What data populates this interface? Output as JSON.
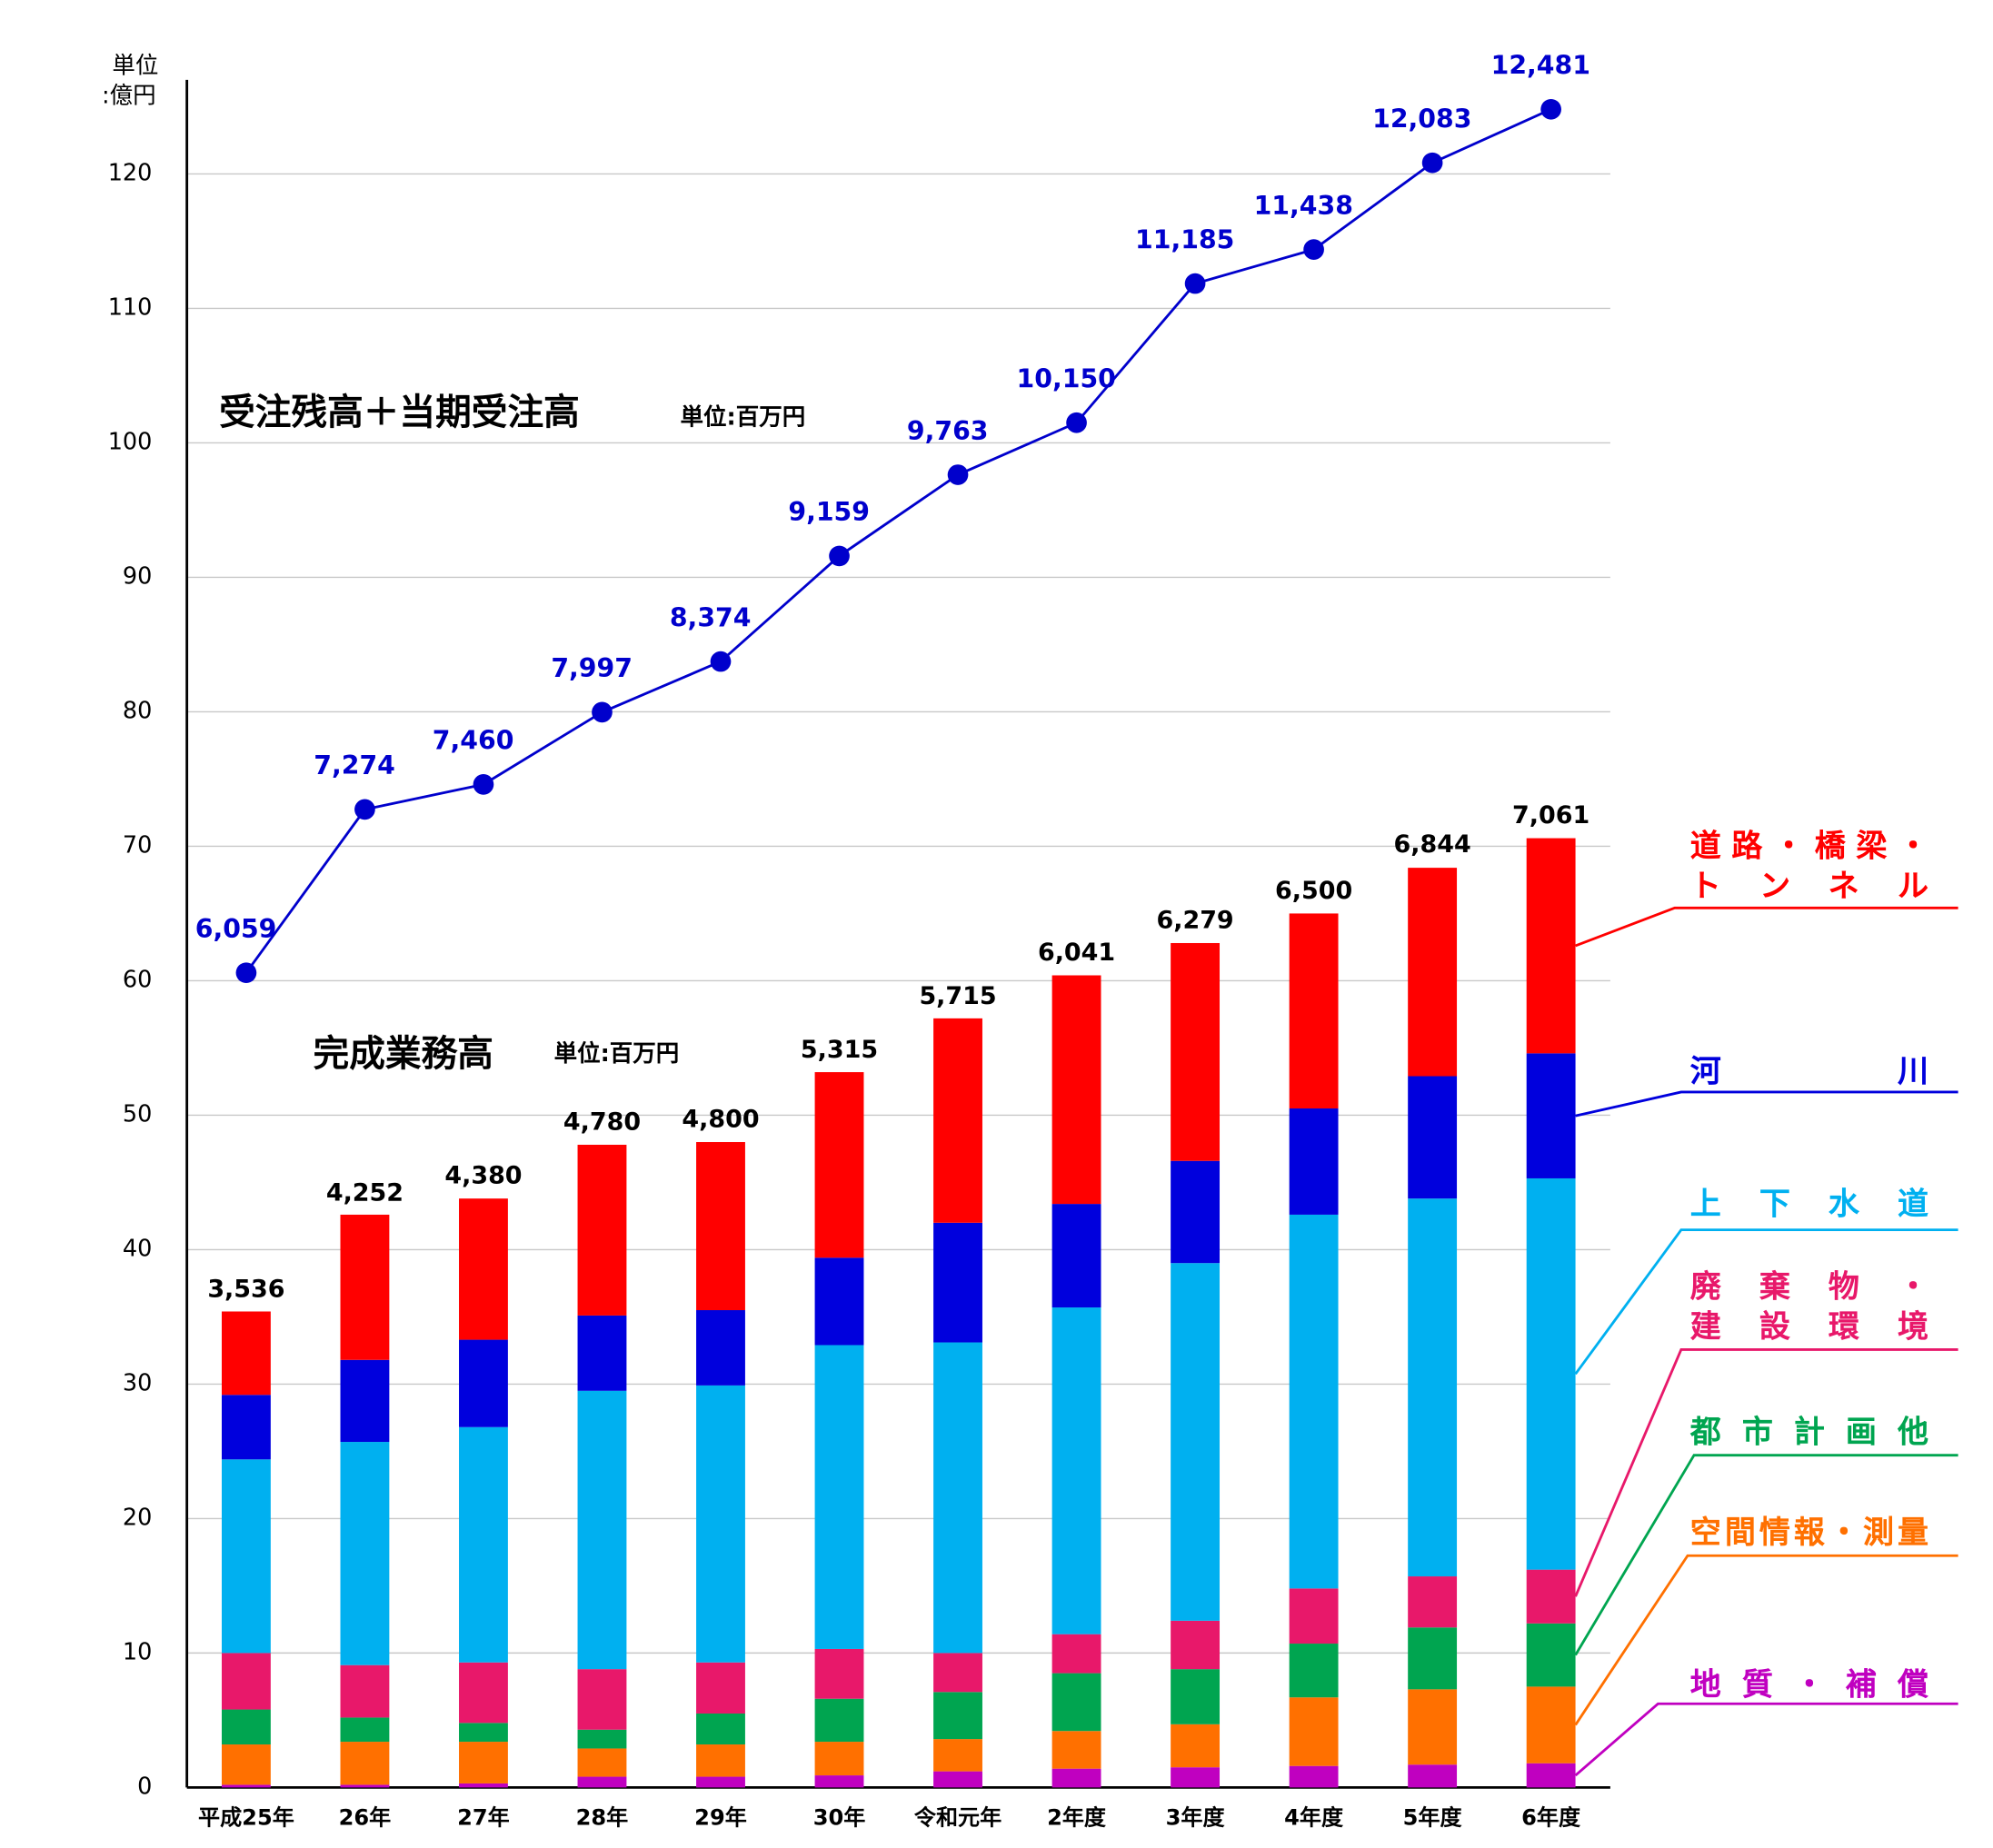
{
  "chart_data": [
    {
      "type": "bar",
      "stacked": true,
      "title": "完成業務高",
      "subtitle": "単位:百万円",
      "y_unit": [
        "単位",
        ":億円"
      ],
      "categories": [
        "平成25年",
        "26年",
        "27年",
        "28年",
        "29年",
        "30年",
        "令和元年",
        "2年度",
        "3年度",
        "4年度",
        "5年度",
        "6年度"
      ],
      "ylim": [
        0,
        127
      ],
      "yticks": [
        0,
        10,
        20,
        30,
        40,
        50,
        60,
        70,
        80,
        90,
        100,
        110,
        120
      ],
      "grid": true,
      "series": [
        {
          "name": "地質・補償",
          "color": "#c000c0",
          "values": [
            0.2,
            0.2,
            0.3,
            0.8,
            0.8,
            0.9,
            1.2,
            1.4,
            1.5,
            1.6,
            1.7,
            1.8
          ]
        },
        {
          "name": "空間情報・測量",
          "color": "#ff7000",
          "values": [
            3.0,
            3.2,
            3.1,
            2.1,
            2.4,
            2.5,
            2.4,
            2.8,
            3.2,
            5.1,
            5.6,
            5.7
          ]
        },
        {
          "name": "都市計画他",
          "color": "#00a550",
          "values": [
            2.6,
            1.8,
            1.4,
            1.4,
            2.3,
            3.2,
            3.5,
            4.3,
            4.1,
            4.0,
            4.6,
            4.7
          ]
        },
        {
          "name": "廃棄物・\n建設環境",
          "color": "#e8186a",
          "values": [
            4.2,
            3.9,
            4.5,
            4.5,
            3.8,
            3.7,
            2.9,
            2.9,
            3.6,
            4.1,
            3.8,
            4.0
          ]
        },
        {
          "name": "上下水道",
          "color": "#00b0f0",
          "values": [
            14.4,
            16.6,
            17.5,
            20.7,
            20.6,
            22.6,
            23.1,
            24.3,
            26.6,
            27.8,
            28.1,
            29.1
          ]
        },
        {
          "name": "河川",
          "color": "#0000dd",
          "values": [
            4.8,
            6.1,
            6.5,
            5.6,
            5.6,
            6.5,
            8.9,
            7.7,
            7.6,
            7.9,
            9.1,
            9.3
          ]
        },
        {
          "name": "道路・橋梁・\nトンネル",
          "color": "#ff0000",
          "values": [
            6.2,
            10.8,
            10.5,
            12.7,
            12.5,
            13.8,
            15.2,
            17.0,
            16.2,
            14.5,
            15.5,
            16.0
          ]
        }
      ],
      "totals": {
        "values": [
          35.36,
          42.52,
          43.8,
          47.8,
          48.0,
          53.15,
          57.15,
          60.41,
          62.79,
          65.0,
          68.44,
          70.61
        ],
        "value_labels": [
          "3,536",
          "4,252",
          "4,380",
          "4,780",
          "4,800",
          "5,315",
          "5,715",
          "6,041",
          "6,279",
          "6,500",
          "6,844",
          "7,061"
        ]
      }
    },
    {
      "type": "line",
      "title": "受注残高＋当期受注高",
      "subtitle": "単位:百万円",
      "color": "#0000cc",
      "values": [
        60.59,
        72.74,
        74.6,
        79.97,
        83.74,
        91.59,
        97.63,
        101.5,
        111.85,
        114.38,
        120.83,
        124.81
      ],
      "value_labels": [
        "6,059",
        "7,274",
        "7,460",
        "7,997",
        "8,374",
        "9,159",
        "9,763",
        "10,150",
        "11,185",
        "11,438",
        "12,083",
        "12,481"
      ]
    }
  ]
}
